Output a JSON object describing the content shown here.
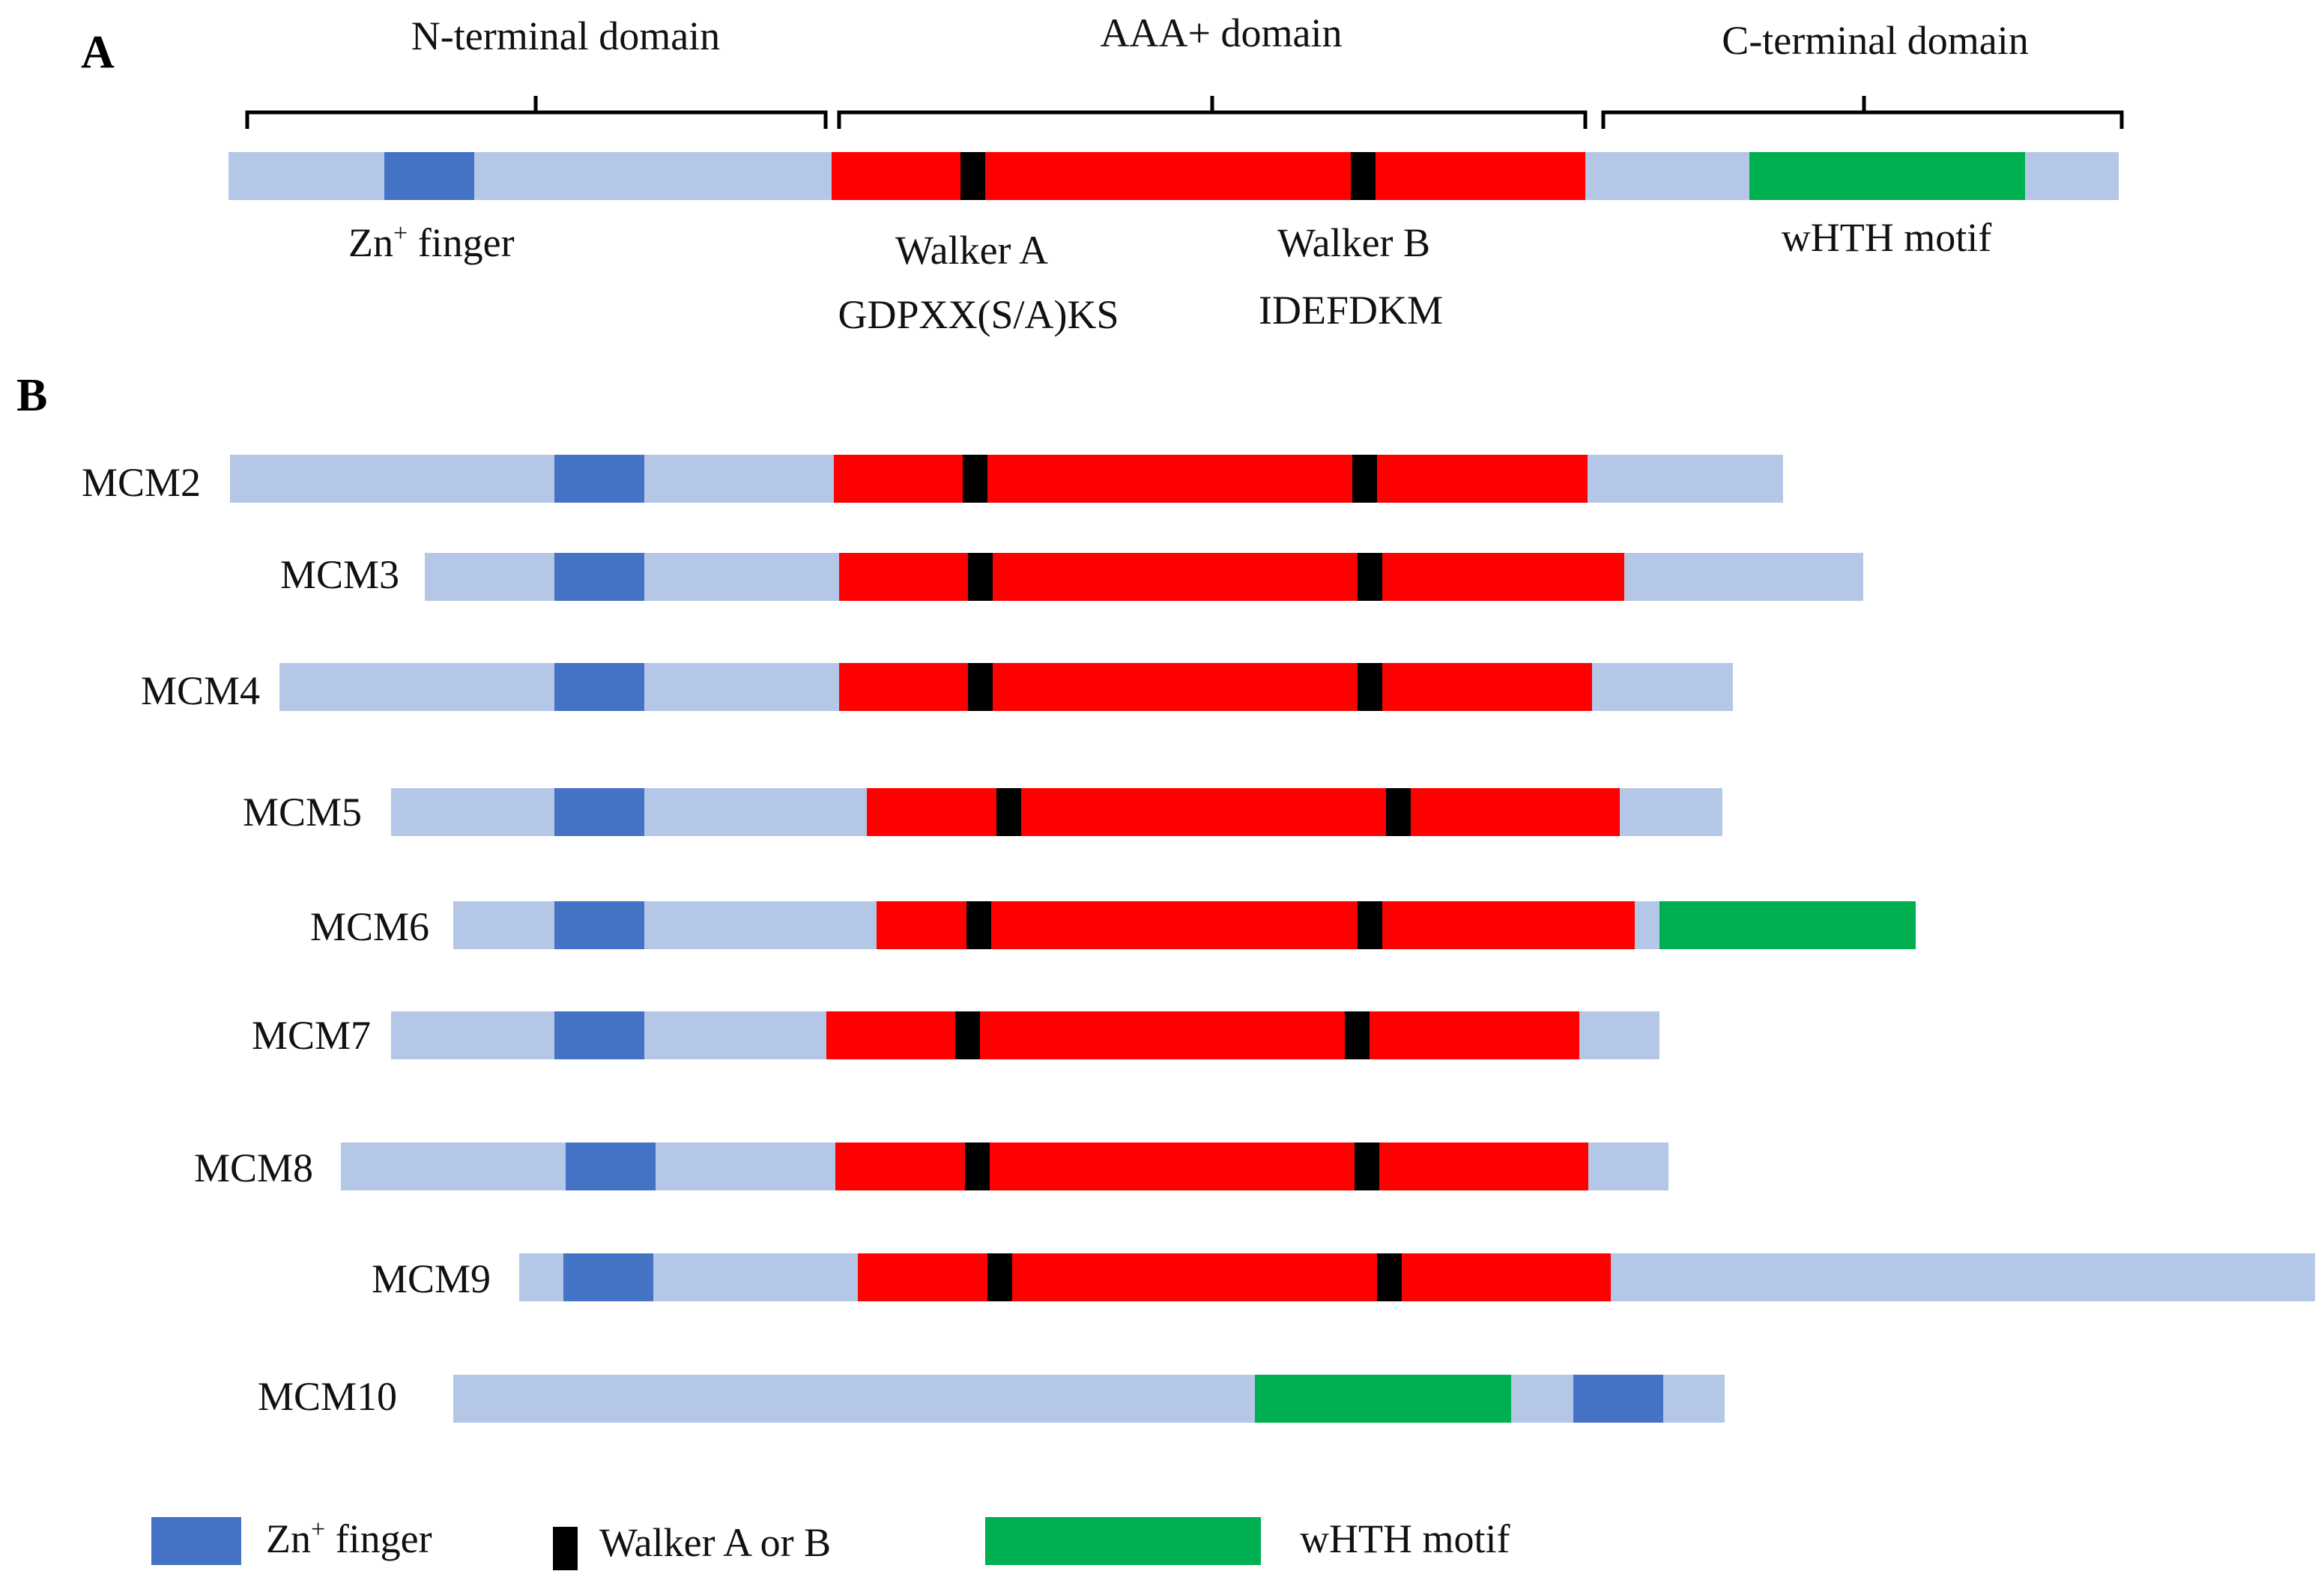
{
  "colors": {
    "background": "#b4c7e7",
    "zinc_finger": "#4472c4",
    "aaa_domain": "#ff0000",
    "walker_motif": "#000000",
    "whth_motif": "#00b050"
  },
  "panel_a": {
    "label": "A",
    "domains": {
      "n_terminal": "N-terminal domain",
      "aaa": "AAA+ domain",
      "c_terminal": "C-terminal domain"
    },
    "features": {
      "zn_finger": "Zn",
      "zn_superscript": "+",
      "zn_suffix": " finger",
      "walker_a": "Walker A",
      "walker_a_seq": "GDPXX(S/A)KS",
      "walker_b": "Walker B",
      "walker_b_seq": "IDEFDKM",
      "whth": "wHTH motif"
    }
  },
  "panel_b": {
    "label": "B",
    "proteins": [
      {
        "name": "MCM2"
      },
      {
        "name": "MCM3"
      },
      {
        "name": "MCM4"
      },
      {
        "name": "MCM5"
      },
      {
        "name": "MCM6"
      },
      {
        "name": "MCM7"
      },
      {
        "name": "MCM8"
      },
      {
        "name": "MCM9"
      },
      {
        "name": "MCM10"
      }
    ]
  },
  "legend": {
    "zn_finger": "Zn",
    "zn_superscript": "+",
    "zn_suffix": " finger",
    "walker": "Walker A or B",
    "whth": "wHTH motif"
  }
}
